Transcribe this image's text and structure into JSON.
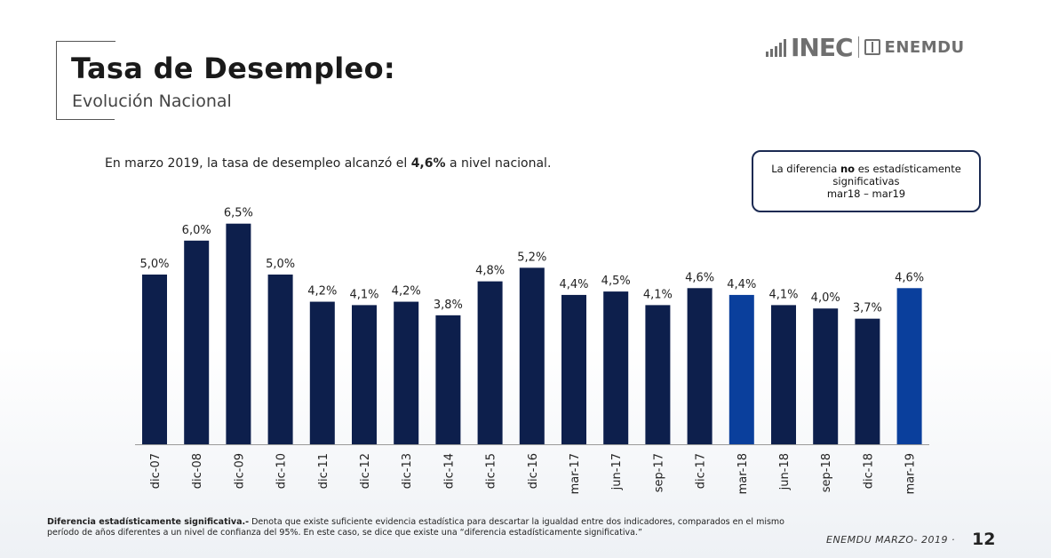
{
  "header": {
    "title": "Tasa de Desempleo:",
    "subtitle": "Evolución Nacional"
  },
  "logo": {
    "inec": "INEC",
    "enemdu": "ENEMDU"
  },
  "headline": {
    "prefix": "En marzo 2019, la tasa de desempleo alcanzó el ",
    "highlight": "4,6%",
    "suffix": " a nivel nacional."
  },
  "note_box": {
    "line1_prefix": "La  diferencia ",
    "line1_bold": "no",
    "line1_suffix": " es estadísticamente",
    "line2": "significativas",
    "line3": "mar18 – mar19"
  },
  "chart_data": {
    "type": "bar",
    "title": "",
    "xlabel": "",
    "ylabel": "",
    "ylim": [
      0,
      7
    ],
    "categories": [
      "dic-07",
      "dic-08",
      "dic-09",
      "dic-10",
      "dic-11",
      "dic-12",
      "dic-13",
      "dic-14",
      "dic-15",
      "dic-16",
      "mar-17",
      "jun-17",
      "sep-17",
      "dic-17",
      "mar-18",
      "jun-18",
      "sep-18",
      "dic-18",
      "mar-19"
    ],
    "values": [
      5.0,
      6.0,
      6.5,
      5.0,
      4.2,
      4.1,
      4.2,
      3.8,
      4.8,
      5.2,
      4.4,
      4.5,
      4.1,
      4.6,
      4.4,
      4.1,
      4.0,
      3.7,
      4.6
    ],
    "labels": [
      "5,0%",
      "6,0%",
      "6,5%",
      "5,0%",
      "4,2%",
      "4,1%",
      "4,2%",
      "3,8%",
      "4,8%",
      "5,2%",
      "4,4%",
      "4,5%",
      "4,1%",
      "4,6%",
      "4,4%",
      "4,1%",
      "4,0%",
      "3,7%",
      "4,6%"
    ],
    "highlighted": [
      "mar-18",
      "mar-19"
    ],
    "colors": {
      "default": "#0d1f4c",
      "highlight": "#0a3f9c",
      "axis": "#9a9a9a"
    }
  },
  "footer": {
    "bold": "Diferencia estadísticamente significativa.-",
    "text": " Denota que existe suficiente evidencia estadística para descartar la igualdad entre dos indicadores, comparados en el mismo período de años diferentes a un nivel de confianza del 95%. En este caso, se dice que existe una “diferencia estadísticamente significativa.”",
    "source": "ENEMDU MARZO- 2019 ·",
    "page": "12"
  }
}
